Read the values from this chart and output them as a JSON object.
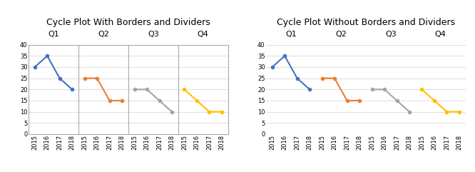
{
  "title_left": "Cycle Plot With Borders and Dividers",
  "title_right": "Cycle Plot Without Borders and Dividers",
  "quarters": [
    "Q1",
    "Q2",
    "Q3",
    "Q4"
  ],
  "years": [
    "2015",
    "2016",
    "2017",
    "2018"
  ],
  "data": {
    "Q1": [
      30,
      35,
      25,
      20
    ],
    "Q2": [
      25,
      25,
      15,
      15
    ],
    "Q3": [
      20,
      20,
      15,
      10
    ],
    "Q4": [
      20,
      15,
      10,
      10
    ]
  },
  "colors": [
    "#4472C4",
    "#ED7D31",
    "#A5A5A5",
    "#FFC000"
  ],
  "ylim": [
    0,
    40
  ],
  "yticks": [
    0,
    5,
    10,
    15,
    20,
    25,
    30,
    35,
    40
  ],
  "title_fontsize": 9,
  "tick_fontsize": 6,
  "quarter_fontsize": 8,
  "background_color": "#FFFFFF",
  "grid_color": "#D9D9D9",
  "marker": "o",
  "markersize": 3,
  "linewidth": 1.5
}
